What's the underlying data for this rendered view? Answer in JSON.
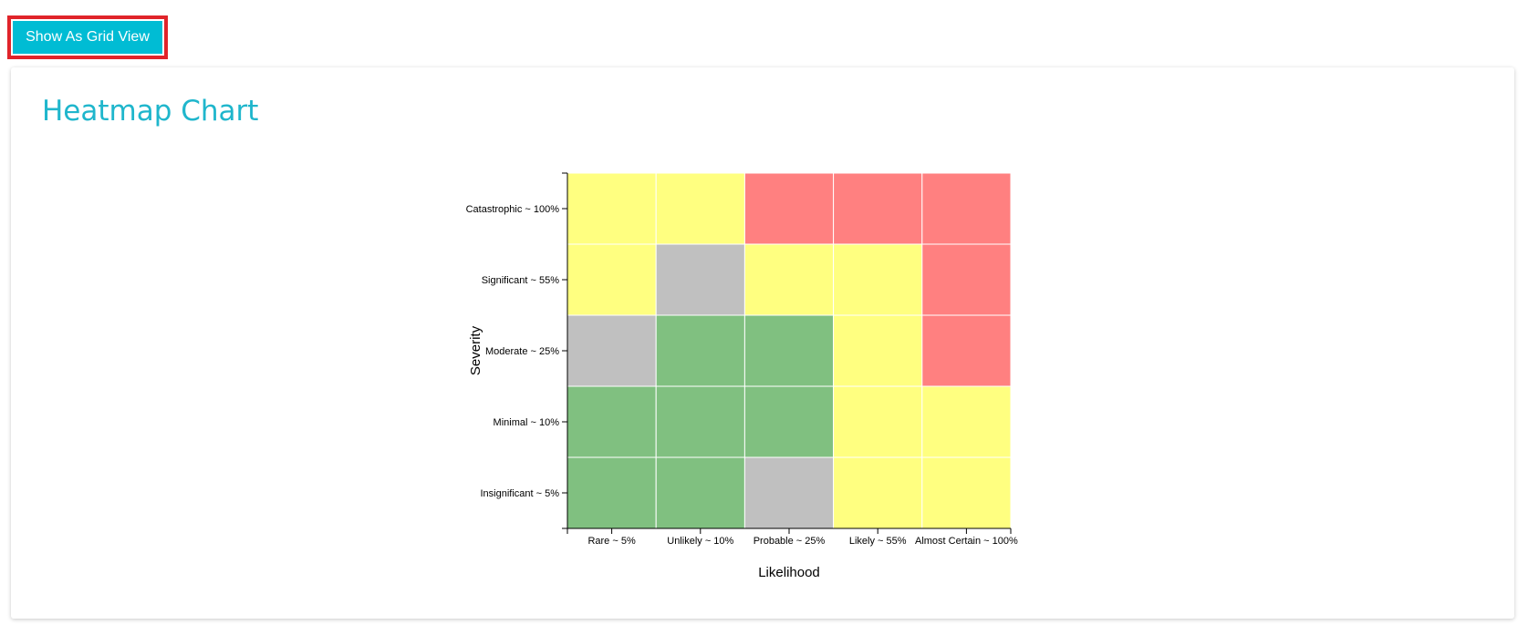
{
  "toolbar": {
    "grid_view_label": "Show As Grid View"
  },
  "card": {
    "title": "Heatmap Chart"
  },
  "colors": {
    "accent": "#00bcd4",
    "highlight_border": "#e0242a",
    "yellow": "#ffff80",
    "red": "#ff8080",
    "green": "#80c080",
    "gray": "#c0c0c0"
  },
  "chart_data": {
    "type": "heatmap",
    "title": "",
    "xlabel": "Likelihood",
    "ylabel": "Severity",
    "x_categories": [
      "Rare ~ 5%",
      "Unlikely ~ 10%",
      "Probable ~ 25%",
      "Likely ~ 55%",
      "Almost Certain ~ 100%"
    ],
    "y_categories": [
      "Catastrophic ~ 100%",
      "Significant ~ 55%",
      "Moderate ~ 25%",
      "Minimal ~ 10%",
      "Insignificant ~ 5%"
    ],
    "cells": [
      [
        "yellow",
        "yellow",
        "red",
        "red",
        "red"
      ],
      [
        "yellow",
        "gray",
        "yellow",
        "yellow",
        "red"
      ],
      [
        "gray",
        "green",
        "green",
        "yellow",
        "red"
      ],
      [
        "green",
        "green",
        "green",
        "yellow",
        "yellow"
      ],
      [
        "green",
        "green",
        "gray",
        "yellow",
        "yellow"
      ]
    ]
  }
}
